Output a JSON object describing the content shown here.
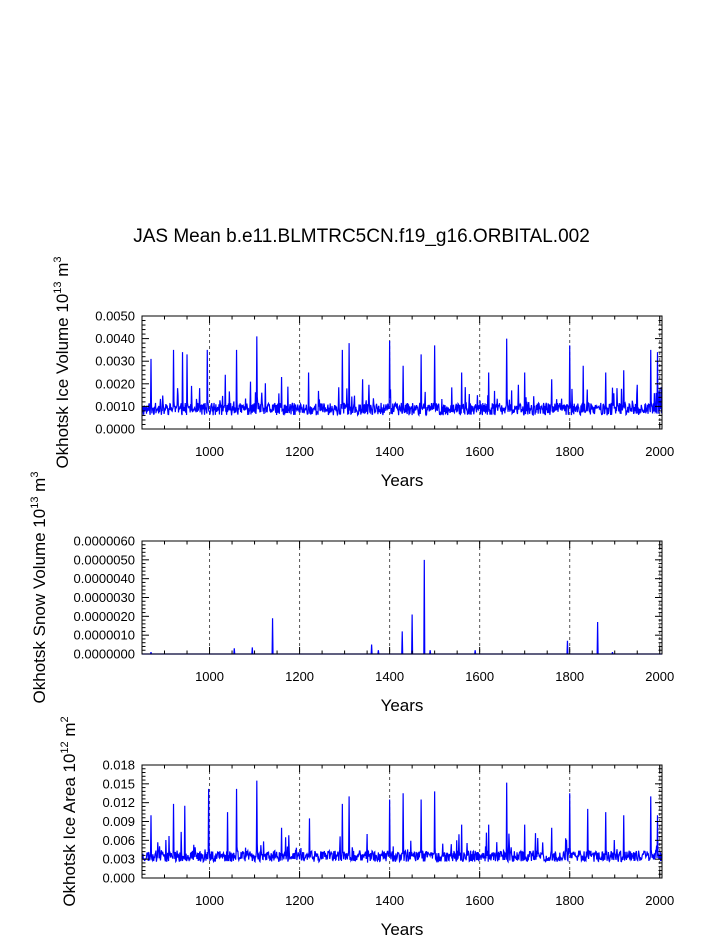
{
  "title": "JAS Mean b.e11.BLMTRC5CN.f19_g16.ORBITAL.002",
  "colors": {
    "series": "#0000ff",
    "axis": "#000000",
    "grid": "#555555"
  },
  "chart_data": [
    {
      "type": "line",
      "ylabel_main": "Okhotsk Ice Volume 10",
      "ylabel_sup": "13",
      "ylabel_unit": " m",
      "ylabel_unit_sup": "3",
      "xlabel": "Years",
      "xlim": [
        850,
        2005
      ],
      "ylim": [
        0,
        0.005
      ],
      "xticks": [
        1000,
        1200,
        1400,
        1600,
        1800,
        2000
      ],
      "xtick_labels": [
        "1000",
        "1200",
        "1400",
        "1600",
        "1800",
        "2000"
      ],
      "yticks": [
        0,
        0.001,
        0.002,
        0.003,
        0.004,
        0.005
      ],
      "ytick_labels": [
        "0.0000",
        "0.0010",
        "0.0020",
        "0.0030",
        "0.0040",
        "0.0050"
      ],
      "gridlines_x": [
        1000,
        1200,
        1400,
        1600,
        1800,
        2000
      ],
      "baseline": 0.0008,
      "noise": 0.00055,
      "floor": 0.0001,
      "peaks": [
        [
          870,
          0.0031
        ],
        [
          920,
          0.0035
        ],
        [
          940,
          0.0034
        ],
        [
          950,
          0.0033
        ],
        [
          995,
          0.0035
        ],
        [
          1035,
          0.0024
        ],
        [
          1060,
          0.0035
        ],
        [
          1105,
          0.0041
        ],
        [
          1160,
          0.0023
        ],
        [
          1220,
          0.0025
        ],
        [
          1295,
          0.0035
        ],
        [
          1310,
          0.0038
        ],
        [
          1340,
          0.0022
        ],
        [
          1400,
          0.0039
        ],
        [
          1430,
          0.0028
        ],
        [
          1470,
          0.0033
        ],
        [
          1500,
          0.0037
        ],
        [
          1560,
          0.0025
        ],
        [
          1620,
          0.0025
        ],
        [
          1660,
          0.004
        ],
        [
          1700,
          0.0025
        ],
        [
          1760,
          0.0022
        ],
        [
          1800,
          0.0037
        ],
        [
          1830,
          0.0028
        ],
        [
          1880,
          0.0025
        ],
        [
          1920,
          0.0026
        ],
        [
          1980,
          0.0035
        ],
        [
          1995,
          0.0034
        ]
      ],
      "seed": 11
    },
    {
      "type": "line",
      "ylabel_main": "Okhotsk Snow Volume 10",
      "ylabel_sup": "13",
      "ylabel_unit": " m",
      "ylabel_unit_sup": "3",
      "xlabel": "Years",
      "xlim": [
        850,
        2005
      ],
      "ylim": [
        0,
        6e-06
      ],
      "xticks": [
        1000,
        1200,
        1400,
        1600,
        1800,
        2000
      ],
      "xtick_labels": [
        "1000",
        "1200",
        "1400",
        "1600",
        "1800",
        "2000"
      ],
      "yticks": [
        0,
        1e-06,
        2e-06,
        3e-06,
        4e-06,
        5e-06,
        6e-06
      ],
      "ytick_labels": [
        "0.0000000",
        "0.0000010",
        "0.0000020",
        "0.0000030",
        "0.0000040",
        "0.0000050",
        "0.0000060"
      ],
      "gridlines_x": [
        1000,
        1200,
        1400,
        1600,
        1800,
        2000
      ],
      "baseline": 0.0,
      "noise": 0.0,
      "floor": 0.0,
      "peaks": [
        [
          870,
          1e-07
        ],
        [
          1055,
          3e-07
        ],
        [
          1095,
          3.5e-07
        ],
        [
          1140,
          1.9e-06
        ],
        [
          1360,
          5e-07
        ],
        [
          1375,
          2e-07
        ],
        [
          1428,
          1.2e-06
        ],
        [
          1450,
          2.1e-06
        ],
        [
          1477,
          5e-06
        ],
        [
          1490,
          2e-07
        ],
        [
          1590,
          2e-07
        ],
        [
          1795,
          7e-07
        ],
        [
          1862,
          1.7e-06
        ],
        [
          1895,
          1e-07
        ]
      ],
      "seed": 5
    },
    {
      "type": "line",
      "ylabel_main": "Okhotsk Ice Area 10",
      "ylabel_sup": "12",
      "ylabel_unit": " m",
      "ylabel_unit_sup": "2",
      "xlabel": "Years",
      "xlim": [
        850,
        2005
      ],
      "ylim": [
        0,
        0.018
      ],
      "xticks": [
        1000,
        1200,
        1400,
        1600,
        1800,
        2000
      ],
      "xtick_labels": [
        "1000",
        "1200",
        "1400",
        "1600",
        "1800",
        "2000"
      ],
      "yticks": [
        0,
        0.003,
        0.006,
        0.009,
        0.012,
        0.015,
        0.018
      ],
      "ytick_labels": [
        "0.000",
        "0.003",
        "0.006",
        "0.009",
        "0.012",
        "0.015",
        "0.018"
      ],
      "gridlines_x": [
        1000,
        1200,
        1400,
        1600,
        1800,
        2000
      ],
      "baseline": 0.0032,
      "noise": 0.0018,
      "floor": 0.0005,
      "peaks": [
        [
          870,
          0.01
        ],
        [
          920,
          0.0118
        ],
        [
          945,
          0.0115
        ],
        [
          998,
          0.0142
        ],
        [
          1040,
          0.0105
        ],
        [
          1060,
          0.0142
        ],
        [
          1105,
          0.0155
        ],
        [
          1160,
          0.008
        ],
        [
          1222,
          0.0095
        ],
        [
          1295,
          0.0118
        ],
        [
          1310,
          0.013
        ],
        [
          1350,
          0.007
        ],
        [
          1400,
          0.0125
        ],
        [
          1430,
          0.0135
        ],
        [
          1470,
          0.0125
        ],
        [
          1500,
          0.0138
        ],
        [
          1560,
          0.0085
        ],
        [
          1620,
          0.0085
        ],
        [
          1660,
          0.0152
        ],
        [
          1700,
          0.0085
        ],
        [
          1760,
          0.008
        ],
        [
          1800,
          0.0135
        ],
        [
          1840,
          0.011
        ],
        [
          1880,
          0.0105
        ],
        [
          1920,
          0.01
        ],
        [
          1980,
          0.013
        ],
        [
          1995,
          0.01
        ]
      ],
      "seed": 23
    }
  ]
}
